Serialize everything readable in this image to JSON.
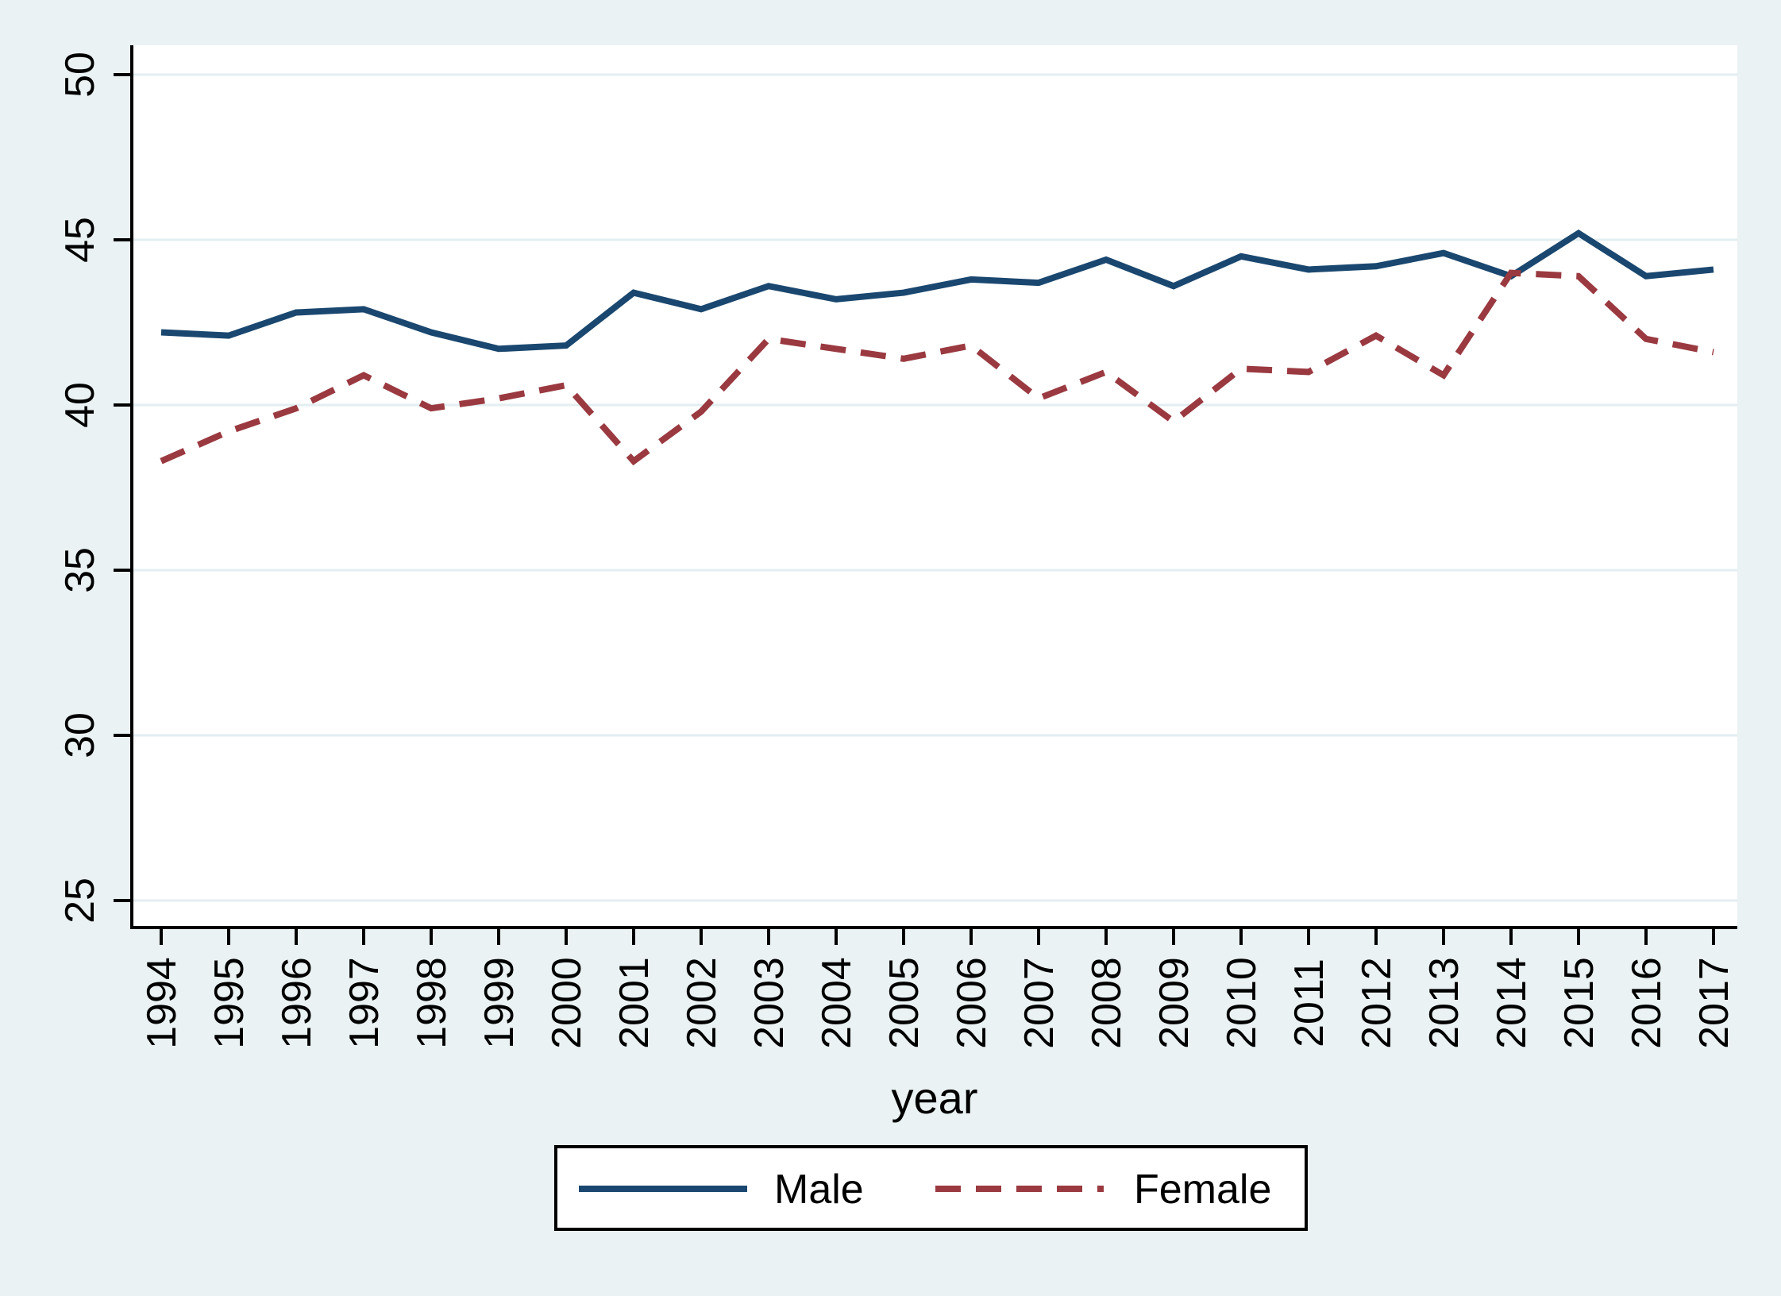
{
  "figure": {
    "background_color": "#eaf2f3",
    "plot_background_color": "#ffffff",
    "gridline_color": "#e3eef1",
    "axis_color": "#000000"
  },
  "chart_data": {
    "type": "line",
    "title": "",
    "xlabel": "year",
    "ylabel": "",
    "x": [
      1994,
      1995,
      1996,
      1997,
      1998,
      1999,
      2000,
      2001,
      2002,
      2003,
      2004,
      2005,
      2006,
      2007,
      2008,
      2009,
      2010,
      2011,
      2012,
      2013,
      2014,
      2015,
      2016,
      2017
    ],
    "series": [
      {
        "name": "Male",
        "style": "solid",
        "color": "#1a476f",
        "values": [
          42.2,
          42.1,
          42.8,
          42.9,
          42.2,
          41.7,
          41.8,
          43.4,
          42.9,
          43.6,
          43.2,
          43.4,
          43.8,
          43.7,
          44.4,
          43.6,
          44.5,
          44.1,
          44.2,
          44.6,
          43.9,
          45.2,
          43.9,
          44.1
        ]
      },
      {
        "name": "Female",
        "style": "dashed",
        "color": "#9a3a40",
        "values": [
          38.3,
          39.2,
          39.9,
          40.9,
          39.9,
          40.2,
          40.6,
          38.3,
          39.8,
          42.0,
          41.7,
          41.4,
          41.8,
          40.2,
          41.0,
          39.5,
          41.1,
          41.0,
          42.1,
          40.9,
          44.0,
          43.9,
          42.0,
          41.6
        ]
      }
    ],
    "y_ticks": [
      25,
      30,
      35,
      40,
      45,
      50
    ],
    "ylim": [
      24.2,
      50.9
    ],
    "xlim": [
      1993.5,
      2017.4
    ],
    "grid": true,
    "tick_label_rotation_deg": -90,
    "legend_position": "bottom-center"
  }
}
